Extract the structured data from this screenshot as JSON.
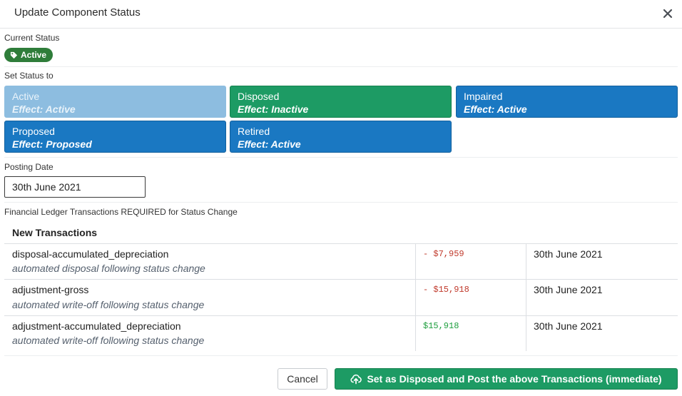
{
  "dialog": {
    "title": "Update Component Status"
  },
  "current_status": {
    "label": "Current Status",
    "badge": "Active",
    "badge_color": "#2f7d3a",
    "badge_icon": "tag-icon"
  },
  "set_status": {
    "label": "Set Status to",
    "options": [
      {
        "name": "Active",
        "effect": "Effect: Active",
        "state": "current",
        "color": "#8dbde0"
      },
      {
        "name": "Disposed",
        "effect": "Effect: Inactive",
        "state": "selected",
        "color": "#1d9b64"
      },
      {
        "name": "Impaired",
        "effect": "Effect: Active",
        "state": "available",
        "color": "#1a78c2"
      },
      {
        "name": "Proposed",
        "effect": "Effect: Proposed",
        "state": "available",
        "color": "#1a78c2"
      },
      {
        "name": "Retired",
        "effect": "Effect: Active",
        "state": "available",
        "color": "#1a78c2"
      }
    ]
  },
  "posting_date": {
    "label": "Posting Date",
    "value": "30th June 2021"
  },
  "ledger": {
    "label": "Financial Ledger Transactions REQUIRED for Status Change",
    "section_title": "New Transactions",
    "transactions": [
      {
        "name": "disposal-accumulated_depreciation",
        "description": "automated disposal following status change",
        "amount": "- $7,959",
        "sign": "negative",
        "date": "30th June 2021"
      },
      {
        "name": "adjustment-gross",
        "description": "automated write-off following status change",
        "amount": "- $15,918",
        "sign": "negative",
        "date": "30th June 2021"
      },
      {
        "name": "adjustment-accumulated_depreciation",
        "description": "automated write-off following status change",
        "amount": "$15,918",
        "sign": "positive",
        "date": "30th June 2021"
      }
    ]
  },
  "footer": {
    "cancel_label": "Cancel",
    "post_label": "Set as Disposed and Post the above Transactions (immediate)",
    "post_icon": "cloud-upload-icon"
  },
  "colors": {
    "primary_blue": "#1a78c2",
    "success_green": "#1d9b64",
    "negative_red": "#c0392b",
    "positive_green": "#1e9e3e"
  }
}
